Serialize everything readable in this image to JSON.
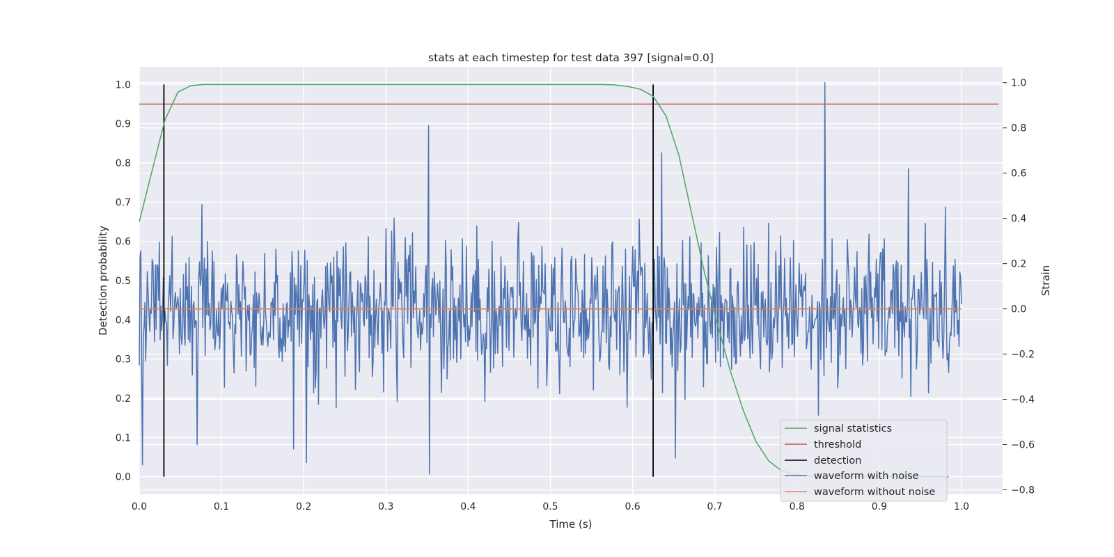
{
  "chart_data": {
    "type": "line",
    "title": "stats at each timestep for test data 397 [signal=0.0]",
    "xlabel": "Time (s)",
    "ylabel_left": "Detection probability",
    "ylabel_right": "Strain",
    "xlim": [
      0.0,
      1.05
    ],
    "ylim_left": [
      -0.045,
      1.045
    ],
    "ylim_right": [
      -0.82,
      1.07
    ],
    "x_ticks": [
      "0.0",
      "0.1",
      "0.2",
      "0.3",
      "0.4",
      "0.5",
      "0.6",
      "0.7",
      "0.8",
      "0.9",
      "1.0"
    ],
    "y_ticks_left": [
      "0.0",
      "0.1",
      "0.2",
      "0.3",
      "0.4",
      "0.5",
      "0.6",
      "0.7",
      "0.8",
      "0.9",
      "1.0"
    ],
    "y_ticks_right": [
      "−0.8",
      "−0.6",
      "−0.4",
      "−0.2",
      "0.0",
      "0.2",
      "0.4",
      "0.6",
      "0.8",
      "1.0"
    ],
    "grid": true,
    "legend_position": "lower-right",
    "colors": {
      "plot_background": "#eaeaf2",
      "grid": "#ffffff",
      "signal_statistics": "#55a868",
      "threshold": "#c44e52",
      "detection": "#000000",
      "waveform_with_noise": "#4c72b0",
      "waveform_without_noise": "#dd8452"
    },
    "series": [
      {
        "name": "signal statistics",
        "axis": "left",
        "x": [
          0.0,
          0.0156,
          0.0313,
          0.0469,
          0.0625,
          0.0781,
          0.0938,
          0.125,
          0.25,
          0.375,
          0.5,
          0.5625,
          0.5781,
          0.5938,
          0.6094,
          0.625,
          0.6406,
          0.6563,
          0.6719,
          0.6875,
          0.7031,
          0.7188,
          0.7344,
          0.75,
          0.7656,
          0.7813,
          0.7969,
          0.8125,
          0.8438,
          0.875,
          0.9375,
          0.9844
        ],
        "y": [
          0.65,
          0.78,
          0.91,
          0.98,
          0.997,
          1.0,
          1.0,
          1.0,
          1.0,
          1.0,
          1.0,
          1.0,
          0.999,
          0.995,
          0.988,
          0.97,
          0.92,
          0.82,
          0.67,
          0.52,
          0.39,
          0.27,
          0.17,
          0.09,
          0.04,
          0.015,
          0.006,
          0.002,
          0.001,
          0.0005,
          0.0002,
          0.0
        ]
      },
      {
        "name": "threshold",
        "axis": "left",
        "x": [
          0.0,
          1.045
        ],
        "y": [
          0.95,
          0.95
        ]
      },
      {
        "name": "detection",
        "axis": "left",
        "type": "vlines",
        "x": [
          0.03,
          0.625
        ],
        "y": [
          0.0,
          1.0
        ]
      },
      {
        "name": "waveform with noise",
        "axis": "right",
        "x_start": 0.0,
        "x_end": 1.0,
        "points": 1024,
        "values_std": 0.16,
        "y_min": -0.73,
        "y_max": 1.0,
        "highlights": [
          {
            "x": 0.0039,
            "y": -0.69
          },
          {
            "x": 0.07,
            "y": -0.6
          },
          {
            "x": 0.188,
            "y": -0.62
          },
          {
            "x": 0.203,
            "y": -0.68
          },
          {
            "x": 0.352,
            "y": 0.81
          },
          {
            "x": 0.353,
            "y": -0.73
          },
          {
            "x": 0.635,
            "y": 0.69
          },
          {
            "x": 0.652,
            "y": -0.66
          },
          {
            "x": 0.834,
            "y": 1.0
          },
          {
            "x": 0.935,
            "y": 0.62
          },
          {
            "x": 0.98,
            "y": 0.45
          }
        ]
      },
      {
        "name": "waveform without noise",
        "axis": "right",
        "x": [
          0.0,
          1.0
        ],
        "y": [
          0.0,
          0.0
        ]
      }
    ]
  }
}
